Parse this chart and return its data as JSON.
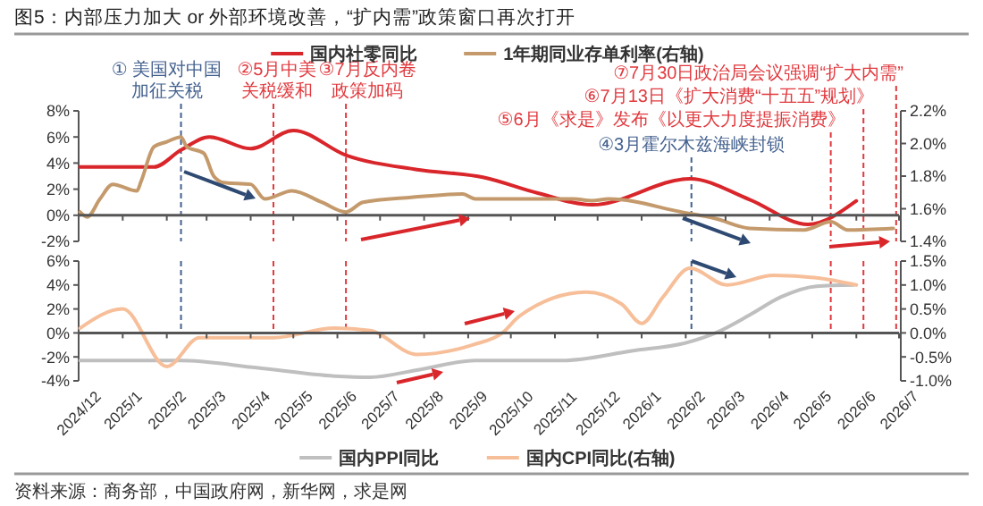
{
  "chart_data": [
    {
      "type": "line",
      "title": "图5：内部压力加大 or 外部环境改善，“扩内需”政策窗口再次打开",
      "legend": "top",
      "tick_labels": "y",
      "xlim": [
        "2024-12-01",
        "2026-07-01"
      ],
      "xticks": [
        {
          "value": "2024-12-01",
          "label": null
        },
        {
          "value": "2025-01-01",
          "label": null
        },
        {
          "value": "2025-02-01",
          "label": null
        },
        {
          "value": "2025-03-01",
          "label": null
        },
        {
          "value": "2025-04-01",
          "label": null
        },
        {
          "value": "2025-05-01",
          "label": null
        },
        {
          "value": "2025-06-01",
          "label": null
        },
        {
          "value": "2025-07-01",
          "label": null
        },
        {
          "value": "2025-08-01",
          "label": null
        },
        {
          "value": "2025-09-01",
          "label": null
        },
        {
          "value": "2025-10-01",
          "label": null
        },
        {
          "value": "2025-11-01",
          "label": null
        },
        {
          "value": "2025-12-01",
          "label": null
        },
        {
          "value": "2026-01-01",
          "label": null
        },
        {
          "value": "2026-02-01",
          "label": null
        },
        {
          "value": "2026-03-01",
          "label": null
        },
        {
          "value": "2026-04-01",
          "label": null
        },
        {
          "value": "2026-05-01",
          "label": null
        },
        {
          "value": "2026-06-01",
          "label": null
        },
        {
          "value": "2026-07-01",
          "label": null
        }
      ],
      "ylim": [
        -2,
        8
      ],
      "yticks": [
        {
          "value": -2,
          "label": "-2%"
        },
        {
          "value": 0,
          "label": "0%"
        },
        {
          "value": 2,
          "label": "2%"
        },
        {
          "value": 4,
          "label": "4%"
        },
        {
          "value": 6,
          "label": "6%"
        },
        {
          "value": 8,
          "label": "8%"
        }
      ],
      "y2lim": [
        1.4,
        2.2
      ],
      "y2ticks": [
        {
          "value": 1.4,
          "label": "1.4%"
        },
        {
          "value": 1.6,
          "label": "1.6%"
        },
        {
          "value": 1.8,
          "label": "1.8%"
        },
        {
          "value": 2.0,
          "label": "2.0%"
        },
        {
          "value": 2.2,
          "label": "2.2%"
        }
      ],
      "series": [
        {
          "name": "国内社零同比",
          "color": "#d9262b",
          "x": [
            "2024-12-02",
            "2025-01-23",
            "2025-02-11",
            "2025-03-03",
            "2025-04-01",
            "2025-05-01",
            "2025-06-07",
            "2025-07-27",
            "2025-09-12",
            "2025-10-20",
            "2025-11-27",
            "2026-02-04",
            "2026-03-18",
            "2026-04-28",
            "2026-06-01"
          ],
          "values": [
            3.7,
            3.7,
            5.0,
            6.0,
            5.1,
            6.5,
            4.6,
            3.5,
            2.9,
            1.7,
            0.8,
            2.8,
            1.2,
            -0.7,
            1.1
          ]
        },
        {
          "name": "1年期同业存单利率(右轴)",
          "color": "#c49a6c",
          "axis": "y2",
          "x": [
            "2024-12-02",
            "2024-12-07",
            "2024-12-16",
            "2024-12-25",
            "2025-01-11",
            "2025-01-14",
            "2025-01-23",
            "2025-02-01",
            "2025-02-11",
            "2025-02-15",
            "2025-02-27",
            "2025-03-06",
            "2025-03-13",
            "2025-04-01",
            "2025-04-11",
            "2025-04-30",
            "2025-05-21",
            "2025-06-07",
            "2025-06-19",
            "2025-07-23",
            "2025-08-28",
            "2025-09-06",
            "2025-09-25",
            "2025-11-14",
            "2025-11-27",
            "2025-12-09",
            "2026-01-29",
            "2026-02-22",
            "2026-03-18",
            "2026-04-25",
            "2026-05-14",
            "2026-05-26",
            "2026-06-27"
          ],
          "values": [
            1.58,
            1.55,
            1.66,
            1.75,
            1.71,
            1.77,
            1.98,
            2.01,
            2.04,
            1.98,
            1.94,
            1.8,
            1.76,
            1.75,
            1.66,
            1.71,
            1.64,
            1.58,
            1.64,
            1.67,
            1.69,
            1.66,
            1.66,
            1.66,
            1.65,
            1.66,
            1.58,
            1.54,
            1.48,
            1.47,
            1.52,
            1.47,
            1.48
          ]
        }
      ],
      "ref_lines": [
        {
          "axis": "x",
          "value": "2025-02-11",
          "label": "① 美国对中国加征关税",
          "color": "#44618f",
          "line_style": "dashed"
        },
        {
          "axis": "x",
          "value": "2025-04-17",
          "label": "②5月中美关税缓和",
          "color": "#e0393e",
          "line_style": "dashed"
        },
        {
          "axis": "x",
          "value": "2025-06-07",
          "label": "③7月反内卷政策加码",
          "color": "#e0393e",
          "line_style": "dashed"
        },
        {
          "axis": "x",
          "value": "2026-02-05",
          "label": "④3月霍尔木兹海峡封锁",
          "color": "#44618f",
          "line_style": "dashed"
        },
        {
          "axis": "x",
          "value": "2026-05-14",
          "label": "⑤6月《求是》发布《以更大力度提振消费》",
          "color": "#e0393e",
          "line_style": "dashed"
        },
        {
          "axis": "x",
          "value": "2026-06-06",
          "label": "⑥7月13日《扩大消费“十五五”规划》",
          "color": "#e0393e",
          "line_style": "dashed"
        },
        {
          "axis": "x",
          "value": "2026-06-29",
          "label": "⑦7月30日政治局会议强调“扩大内需”",
          "color": "#e0393e",
          "line_style": "dashed"
        }
      ]
    },
    {
      "type": "line",
      "legend": "bottom",
      "xlim": [
        "2024-12-01",
        "2026-07-01"
      ],
      "xticks": [
        {
          "value": "2024-12-01",
          "label": "2024/12"
        },
        {
          "value": "2025-01-01",
          "label": "2025/1"
        },
        {
          "value": "2025-02-01",
          "label": "2025/2"
        },
        {
          "value": "2025-03-01",
          "label": "2025/3"
        },
        {
          "value": "2025-04-01",
          "label": "2025/4"
        },
        {
          "value": "2025-05-01",
          "label": "2025/5"
        },
        {
          "value": "2025-06-01",
          "label": "2025/6"
        },
        {
          "value": "2025-07-01",
          "label": "2025/7"
        },
        {
          "value": "2025-08-01",
          "label": "2025/8"
        },
        {
          "value": "2025-09-01",
          "label": "2025/9"
        },
        {
          "value": "2025-10-01",
          "label": "2025/10"
        },
        {
          "value": "2025-11-01",
          "label": "2025/11"
        },
        {
          "value": "2025-12-01",
          "label": "2025/12"
        },
        {
          "value": "2026-01-01",
          "label": "2026/1"
        },
        {
          "value": "2026-02-01",
          "label": "2026/2"
        },
        {
          "value": "2026-03-01",
          "label": "2026/3"
        },
        {
          "value": "2026-04-01",
          "label": "2026/4"
        },
        {
          "value": "2026-05-01",
          "label": "2026/5"
        },
        {
          "value": "2026-06-01",
          "label": "2026/6"
        },
        {
          "value": "2026-07-01",
          "label": "2026/7"
        }
      ],
      "ylim": [
        -4,
        6
      ],
      "yticks": [
        {
          "value": -4,
          "label": "-4%"
        },
        {
          "value": -2,
          "label": "-2%"
        },
        {
          "value": 0,
          "label": "0%"
        },
        {
          "value": 2,
          "label": "2%"
        },
        {
          "value": 4,
          "label": "4%"
        },
        {
          "value": 6,
          "label": "6%"
        }
      ],
      "y2lim": [
        -1.0,
        1.5
      ],
      "y2ticks": [
        {
          "value": -1.0,
          "label": "-1.0%"
        },
        {
          "value": -0.5,
          "label": "-0.5%"
        },
        {
          "value": 0,
          "label": "0.0%"
        },
        {
          "value": 0.5,
          "label": "0.5%"
        },
        {
          "value": 1.0,
          "label": "1.0%"
        },
        {
          "value": 1.5,
          "label": "1.5%"
        }
      ],
      "series": [
        {
          "name": "国内PPI同比",
          "color": "#bfbfbf",
          "x": [
            "2024-12-02",
            "2025-02-11",
            "2025-04-05",
            "2025-05-30",
            "2025-06-24",
            "2025-07-27",
            "2025-09-06",
            "2025-11-06",
            "2025-12-25",
            "2026-02-02",
            "2026-02-22",
            "2026-03-18",
            "2026-04-09",
            "2026-05-04",
            "2026-05-30"
          ],
          "values": [
            -2.3,
            -2.3,
            -2.9,
            -3.6,
            -3.7,
            -3.1,
            -2.3,
            -2.3,
            -1.5,
            -0.8,
            0,
            1.5,
            3.0,
            3.9,
            4.0
          ]
        },
        {
          "name": "国内CPI同比(右轴)",
          "color": "#f7bf99",
          "axis": "y2",
          "x": [
            "2024-12-02",
            "2025-01-01",
            "2025-02-01",
            "2025-02-24",
            "2025-04-17",
            "2025-05-30",
            "2025-06-24",
            "2025-07-27",
            "2025-09-04",
            "2025-09-25",
            "2025-10-07",
            "2025-11-23",
            "2025-12-18",
            "2026-01-01",
            "2026-01-16",
            "2026-02-04",
            "2026-03-02",
            "2026-04-04",
            "2026-05-04",
            "2026-06-01"
          ],
          "values": [
            0.1,
            0.5,
            -0.7,
            -0.1,
            -0.1,
            0.1,
            0.05,
            -0.45,
            -0.25,
            0,
            0.35,
            0.85,
            0.6,
            0.2,
            0.75,
            1.35,
            1.0,
            1.2,
            1.15,
            1.0
          ]
        }
      ],
      "ref_lines": [
        {
          "axis": "x",
          "value": "2025-02-11",
          "color": "#44618f",
          "line_style": "dashed"
        },
        {
          "axis": "x",
          "value": "2025-04-17",
          "color": "#e0393e",
          "line_style": "dashed"
        },
        {
          "axis": "x",
          "value": "2025-06-07",
          "color": "#e0393e",
          "line_style": "dashed"
        },
        {
          "axis": "x",
          "value": "2026-02-05",
          "color": "#44618f",
          "line_style": "dashed"
        },
        {
          "axis": "x",
          "value": "2026-05-14",
          "color": "#e0393e",
          "line_style": "dashed"
        },
        {
          "axis": "x",
          "value": "2026-06-06",
          "color": "#e0393e",
          "line_style": "dashed"
        },
        {
          "axis": "x",
          "value": "2026-06-29",
          "color": "#e0393e",
          "line_style": "dashed"
        }
      ],
      "annotations": [
        "资料来源：商务部，中国政府网，新华网，求是网"
      ]
    }
  ]
}
